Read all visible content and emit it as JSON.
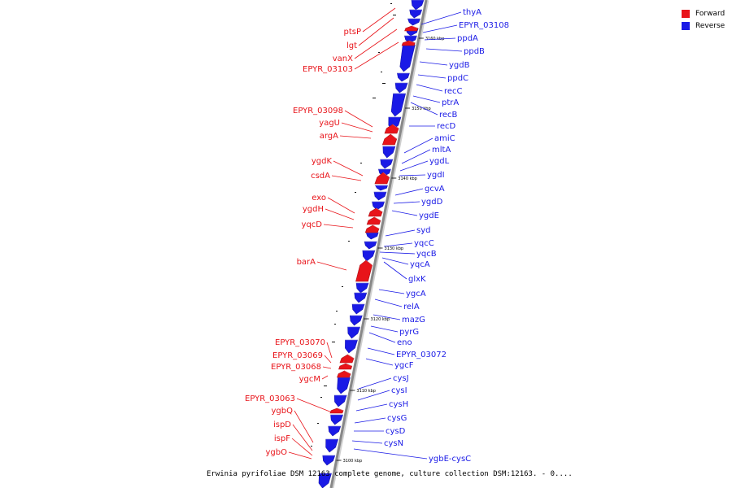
{
  "caption": "Erwinia pyrifoliae DSM 12163 complete genome, culture collection DSM:12163. - 0....",
  "legend": [
    {
      "label": "Forward",
      "color": "#e8141a"
    },
    {
      "label": "Reverse",
      "color": "#1a1ae6"
    }
  ],
  "colors": {
    "forward": "#e8141a",
    "reverse": "#1a1ae6",
    "backbone": "#888888"
  },
  "ticks": [
    "3160 kbp",
    "3150 kbp",
    "3140 kbp",
    "3130 kbp",
    "3120 kbp",
    "3110 kbp",
    "3100 kbp"
  ],
  "forward_genes": [
    "ptsP",
    "lgt",
    "vanX",
    "EPYR_03103",
    "EPYR_03098",
    "yagU",
    "argA",
    "ygdK",
    "csdA",
    "exo",
    "ygdH",
    "yqcD",
    "barA",
    "EPYR_03070",
    "EPYR_03069",
    "EPYR_03068",
    "ygcM",
    "EPYR_03063",
    "ygbQ",
    "ispD",
    "ispF",
    "ygbO"
  ],
  "reverse_genes": [
    "thyA",
    "EPYR_03108",
    "ppdA",
    "ppdB",
    "ygdB",
    "ppdC",
    "recC",
    "ptrA",
    "recB",
    "recD",
    "amiC",
    "mltA",
    "ygdL",
    "ygdI",
    "gcvA",
    "ygdD",
    "ygdE",
    "syd",
    "yqcC",
    "yqcB",
    "yqcA",
    "glxK",
    "ygcA",
    "relA",
    "mazG",
    "pyrG",
    "eno",
    "EPYR_03072",
    "ygcF",
    "cysJ",
    "cysI",
    "cysH",
    "cysG",
    "cysD",
    "cysN",
    "ygbE-cysC"
  ]
}
